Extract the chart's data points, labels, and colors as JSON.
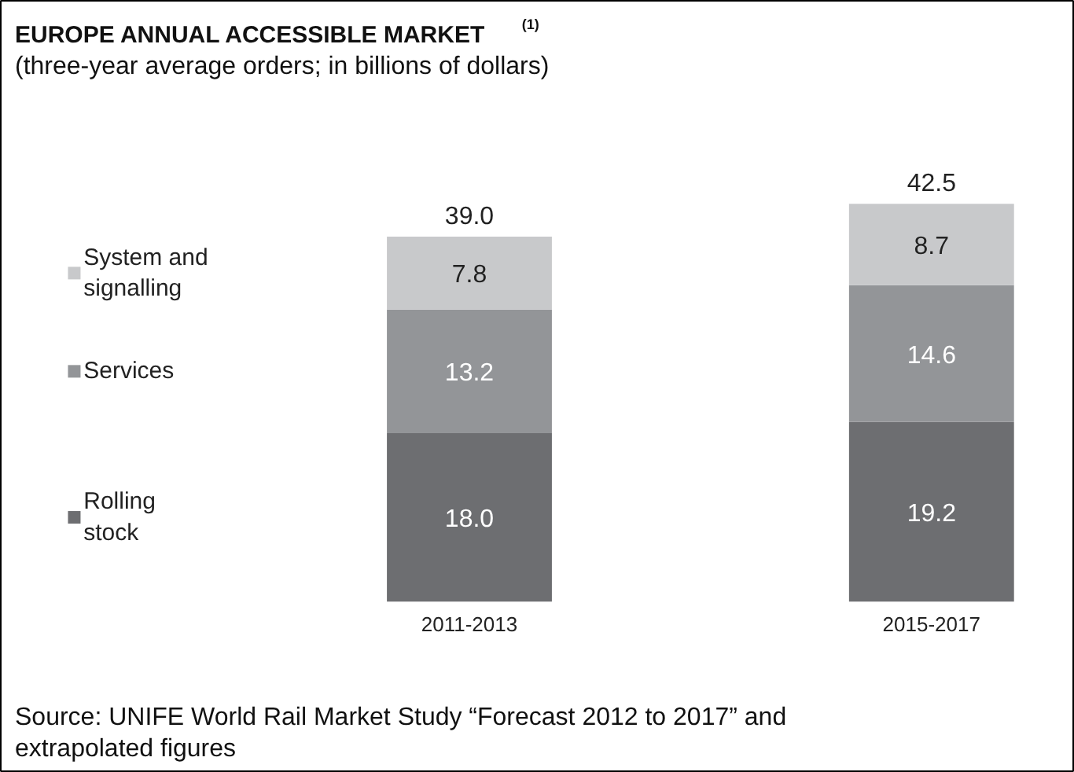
{
  "chart_data": {
    "type": "bar",
    "stacked": true,
    "title": "EUROPE ANNUAL ACCESSIBLE MARKET$^{(1)}$",
    "subtitle": "(three-year average orders; in billions of dollars)",
    "categories": [
      "2011-2013",
      "2015-2017"
    ],
    "series": [
      {
        "name": "Rolling stock",
        "color": "#6d6e71",
        "values": [
          18.0,
          19.2
        ],
        "value_labels": [
          "18.0",
          "19.2"
        ]
      },
      {
        "name": "Services",
        "color": "#939598",
        "values": [
          13.2,
          14.6
        ],
        "value_labels": [
          "13.2",
          "14.6"
        ]
      },
      {
        "name": "System and signalling",
        "color": "#c8c9cb",
        "values": [
          7.8,
          8.7
        ],
        "value_labels": [
          "7.8",
          "8.7"
        ]
      }
    ],
    "totals": [
      "39.0",
      "42.5"
    ],
    "legend": "left",
    "annotations": [
      "Source: UNIFE World Rail Market Study “Forecast 2012 to 2017” and extrapolated figures"
    ]
  }
}
